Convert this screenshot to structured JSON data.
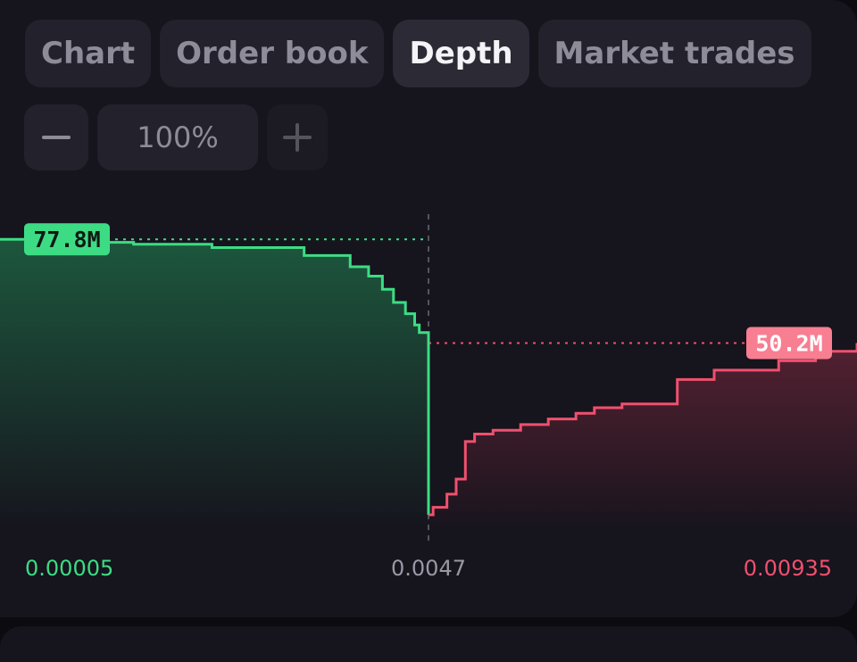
{
  "tabs": [
    {
      "label": "Chart",
      "active": false
    },
    {
      "label": "Order book",
      "active": false
    },
    {
      "label": "Depth",
      "active": true
    },
    {
      "label": "Market trades",
      "active": false
    }
  ],
  "zoom": {
    "minus_icon": "minus-icon",
    "value": "100%",
    "plus_icon": "plus-icon"
  },
  "colors": {
    "bid": "#3ddc84",
    "ask": "#f0506e",
    "mid": "#9a98a4"
  },
  "chart_data": {
    "type": "area",
    "title": "",
    "xlabel": "",
    "ylabel": "",
    "x_tick_labels": [
      "0.00005",
      "0.0047",
      "0.00935"
    ],
    "xlim": [
      5e-05,
      0.00935
    ],
    "mid_price": 0.0047,
    "ylim": [
      0,
      94
    ],
    "y_unit": "M",
    "max_bid_label": "77.8M",
    "max_ask_label": "50.2M",
    "series": [
      {
        "side": "bid",
        "x": [
          5e-05,
          0.00115,
          0.0015,
          0.00235,
          0.00335,
          0.00385,
          0.00405,
          0.0042,
          0.00432,
          0.00445,
          0.00455,
          0.0046,
          0.0047
        ],
        "y": [
          77.8,
          77.0,
          76.5,
          75.6,
          73.5,
          70.5,
          68.0,
          64.5,
          61.0,
          58.0,
          55.0,
          53.0,
          4.5
        ]
      },
      {
        "side": "ask",
        "x": [
          0.0047,
          0.00475,
          0.0049,
          0.005,
          0.0051,
          0.0052,
          0.0054,
          0.0057,
          0.006,
          0.0063,
          0.0065,
          0.0068,
          0.0074,
          0.0078,
          0.0085,
          0.0089,
          0.00935
        ],
        "y": [
          4.5,
          6.5,
          10.0,
          14.0,
          24.0,
          26.0,
          27.0,
          28.5,
          30.0,
          31.5,
          33.0,
          34.0,
          40.5,
          43.0,
          45.5,
          48.0,
          50.2
        ]
      }
    ]
  }
}
